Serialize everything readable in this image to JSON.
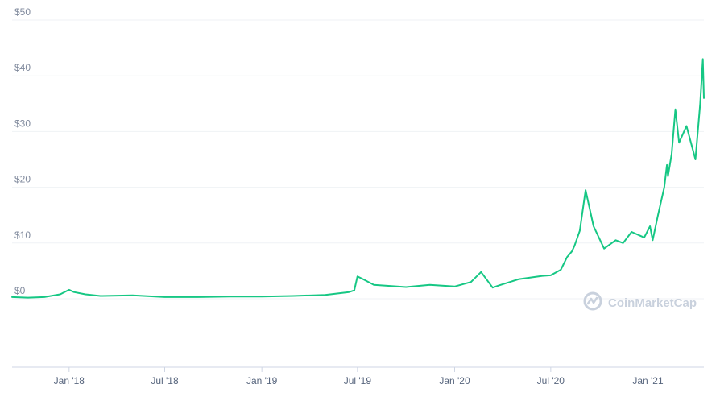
{
  "chart_data": {
    "type": "line",
    "title": "",
    "xlabel": "",
    "ylabel": "",
    "ylim": [
      0,
      50
    ],
    "yticks": [
      "$0",
      "$10",
      "$20",
      "$30",
      "$40",
      "$50"
    ],
    "xticks": [
      "Jan '18",
      "Jul '18",
      "Jan '19",
      "Jul '19",
      "Jan '20",
      "Jul '20",
      "Jan '21"
    ],
    "grid": true,
    "line_color": "#16c784",
    "series": [
      {
        "name": "",
        "x": [
          "2017-09-15",
          "2017-10-15",
          "2017-11-15",
          "2017-12-15",
          "2018-01-01",
          "2018-01-10",
          "2018-02-01",
          "2018-03-01",
          "2018-05-01",
          "2018-07-01",
          "2018-09-01",
          "2018-11-01",
          "2019-01-01",
          "2019-03-01",
          "2019-05-01",
          "2019-06-15",
          "2019-06-25",
          "2019-07-01",
          "2019-07-10",
          "2019-08-01",
          "2019-10-01",
          "2019-11-15",
          "2020-01-01",
          "2020-02-01",
          "2020-02-20",
          "2020-03-13",
          "2020-03-25",
          "2020-05-01",
          "2020-06-15",
          "2020-07-01",
          "2020-07-20",
          "2020-08-01",
          "2020-08-10",
          "2020-08-15",
          "2020-08-25",
          "2020-09-05",
          "2020-09-20",
          "2020-10-10",
          "2020-11-01",
          "2020-11-15",
          "2020-12-01",
          "2020-12-25",
          "2021-01-05",
          "2021-01-10",
          "2021-01-20",
          "2021-02-01",
          "2021-02-06",
          "2021-02-08",
          "2021-02-15",
          "2021-02-22",
          "2021-03-01",
          "2021-03-15",
          "2021-04-01",
          "2021-04-10",
          "2021-04-15",
          "2021-04-17"
        ],
        "values": [
          0.3,
          0.2,
          0.3,
          0.8,
          1.6,
          1.2,
          0.8,
          0.5,
          0.6,
          0.3,
          0.3,
          0.4,
          0.4,
          0.5,
          0.7,
          1.2,
          1.5,
          4.0,
          3.6,
          2.5,
          2.1,
          2.5,
          2.2,
          3.0,
          4.8,
          2.0,
          2.4,
          3.5,
          4.1,
          4.2,
          5.2,
          7.5,
          8.5,
          9.5,
          12.2,
          19.5,
          13.0,
          9.0,
          10.5,
          10.0,
          12.0,
          11.0,
          13.0,
          10.5,
          15.0,
          20.0,
          24.0,
          22.0,
          26.0,
          34.0,
          28.0,
          31.0,
          25.0,
          35.0,
          43.0,
          36.0
        ]
      }
    ]
  },
  "watermark": {
    "label": "CoinMarketCap"
  }
}
